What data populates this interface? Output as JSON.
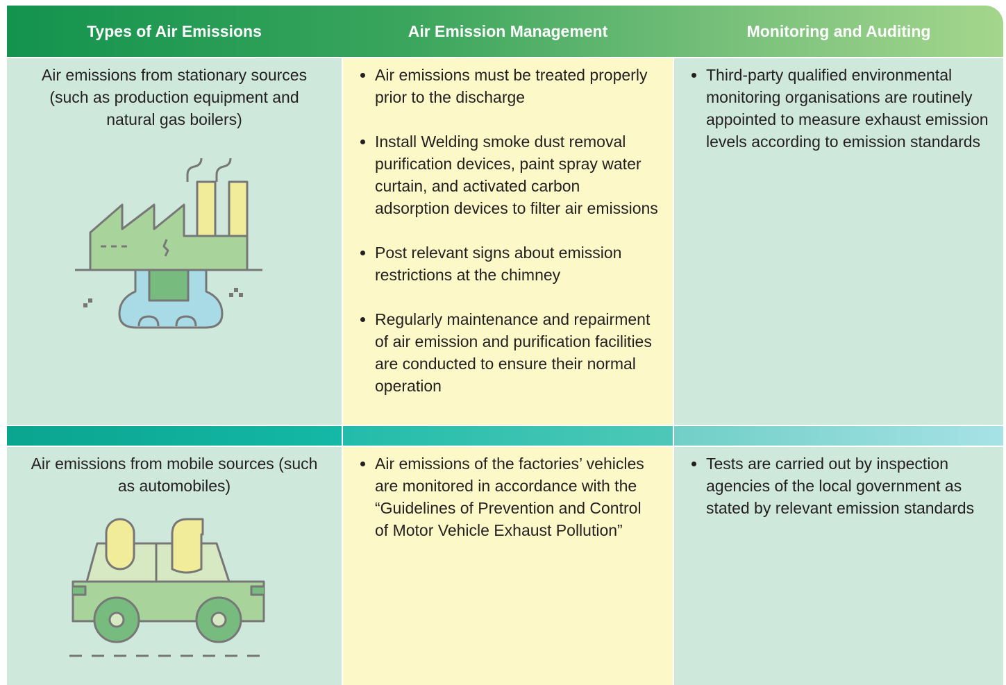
{
  "header": {
    "columns": [
      "Types of Air Emissions",
      "Air Emission Management",
      "Monitoring and Auditing"
    ]
  },
  "table": {
    "rows": [
      {
        "type": "Air emissions from stationary sources (such as production equipment and natural gas boilers)",
        "management": [
          "Air emissions must be treated properly prior to the discharge",
          "Install Welding smoke dust removal purification devices, paint spray water curtain, and activated carbon adsorption devices to filter air emissions",
          "Post relevant signs about emission restrictions at the chimney",
          "Regularly maintenance and repairment of air emission and purification facilities are conducted to ensure their normal operation"
        ],
        "monitoring": [
          "Third-party qualified environmental monitoring organisations are routinely appointed to measure exhaust emission levels according to emission standards"
        ]
      },
      {
        "type": "Air emissions from mobile sources (such as automobiles)",
        "management": [
          "Air emissions of the factories’ vehicles are monitored in accordance with the “Guidelines of Prevention and Control of Motor Vehicle Exhaust Pollution”"
        ],
        "monitoring": [
          "Tests are carried out by inspection agencies of the local government as stated by relevant emission standards"
        ]
      }
    ]
  }
}
